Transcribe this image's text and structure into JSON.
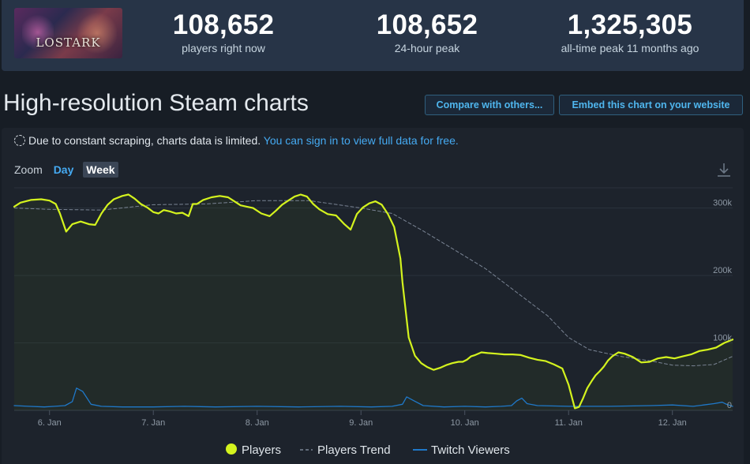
{
  "game": {
    "logo_text": "LOSTARK"
  },
  "stats": [
    {
      "value": "108,652",
      "label": "players right now"
    },
    {
      "value": "108,652",
      "label": "24-hour peak"
    },
    {
      "value": "1,325,305",
      "label": "all-time peak 11 months ago"
    }
  ],
  "header": {
    "title": "High-resolution Steam charts",
    "compare_label": "Compare with others...",
    "embed_label": "Embed this chart on your website"
  },
  "notice": {
    "text": "Due to constant scraping, charts data is limited.",
    "link_text": "You can sign in to view full data for free."
  },
  "zoom": {
    "label": "Zoom",
    "options": [
      "Day",
      "Week"
    ],
    "selected": "Week"
  },
  "icons": {
    "download": "download-icon",
    "loading": "loading-circle-icon"
  },
  "colors": {
    "players": "#d4f31e",
    "trend": "#7a8494",
    "twitch": "#1f78c8",
    "accent_link": "#45aaf2"
  },
  "chart_data": {
    "type": "line",
    "ylim": [
      0,
      330000
    ],
    "y_ticks": [
      {
        "value": 0,
        "label": "0"
      },
      {
        "value": 100000,
        "label": "100k"
      },
      {
        "value": 200000,
        "label": "200k"
      },
      {
        "value": 300000,
        "label": "300k"
      }
    ],
    "x_ticks": [
      {
        "x": 1,
        "label": "6. Jan"
      },
      {
        "x": 2,
        "label": "7. Jan"
      },
      {
        "x": 3,
        "label": "8. Jan"
      },
      {
        "x": 4,
        "label": "9. Jan"
      },
      {
        "x": 5,
        "label": "10. Jan"
      },
      {
        "x": 6,
        "label": "11. Jan"
      },
      {
        "x": 7,
        "label": "12. Jan"
      }
    ],
    "xlim": [
      0.66,
      7.58
    ],
    "legend": [
      "Players",
      "Players Trend",
      "Twitch Viewers"
    ],
    "series": [
      {
        "name": "Players",
        "style": "solid",
        "x": [
          0.66,
          0.72,
          0.82,
          0.92,
          1.0,
          1.06,
          1.1,
          1.16,
          1.22,
          1.3,
          1.38,
          1.44,
          1.5,
          1.56,
          1.62,
          1.7,
          1.76,
          1.82,
          1.88,
          1.94,
          2.0,
          2.05,
          2.1,
          2.16,
          2.22,
          2.28,
          2.34,
          2.38,
          2.42,
          2.48,
          2.56,
          2.64,
          2.72,
          2.78,
          2.84,
          2.9,
          2.96,
          3.04,
          3.12,
          3.18,
          3.24,
          3.3,
          3.36,
          3.42,
          3.48,
          3.54,
          3.6,
          3.68,
          3.76,
          3.84,
          3.9,
          3.96,
          4.02,
          4.08,
          4.14,
          4.2,
          4.26,
          4.32,
          4.38,
          4.4,
          4.46,
          4.52,
          4.58,
          4.64,
          4.7,
          4.76,
          4.82,
          4.88,
          4.94,
          4.98,
          5.02,
          5.06,
          5.1,
          5.16,
          5.22,
          5.3,
          5.38,
          5.46,
          5.54,
          5.62,
          5.7,
          5.78,
          5.86,
          5.94,
          6.0,
          6.06,
          6.1,
          6.14,
          6.18,
          6.22,
          6.26,
          6.3,
          6.34,
          6.38,
          6.42,
          6.48,
          6.54,
          6.62,
          6.7,
          6.78,
          6.86,
          6.94,
          7.02,
          7.1,
          7.18,
          7.26,
          7.34,
          7.42,
          7.5,
          7.58
        ],
        "y": [
          302000,
          308000,
          312000,
          313000,
          311000,
          306000,
          292000,
          265000,
          276000,
          280000,
          276000,
          275000,
          292000,
          305000,
          313000,
          318000,
          320000,
          314000,
          306000,
          301000,
          294000,
          292000,
          297000,
          295000,
          292000,
          293000,
          288000,
          306000,
          306000,
          312000,
          316000,
          318000,
          316000,
          310000,
          304000,
          302000,
          300000,
          292000,
          288000,
          296000,
          305000,
          311000,
          317000,
          320000,
          317000,
          306000,
          298000,
          291000,
          289000,
          276000,
          268000,
          291000,
          301000,
          307000,
          310000,
          305000,
          291000,
          272000,
          225000,
          190000,
          108000,
          81000,
          70000,
          64000,
          60000,
          63000,
          67000,
          70000,
          72000,
          72000,
          75000,
          80000,
          82000,
          86000,
          85000,
          84000,
          83000,
          83000,
          82000,
          78000,
          75000,
          73000,
          68000,
          62000,
          38000,
          3000,
          5000,
          18000,
          33000,
          43000,
          52000,
          58000,
          65000,
          74000,
          80000,
          86000,
          84000,
          79000,
          71000,
          72000,
          77000,
          79000,
          77000,
          80000,
          83000,
          88000,
          90000,
          93000,
          100000,
          105000
        ]
      },
      {
        "name": "Players Trend",
        "style": "dashed",
        "x": [
          0.66,
          1.0,
          1.5,
          2.0,
          2.5,
          3.0,
          3.5,
          4.0,
          4.3,
          4.6,
          4.9,
          5.2,
          5.5,
          5.8,
          6.0,
          6.2,
          6.5,
          6.8,
          7.0,
          7.2,
          7.4,
          7.58
        ],
        "y": [
          300000,
          298000,
          297000,
          305000,
          306000,
          311000,
          311000,
          300000,
          292000,
          266000,
          238000,
          210000,
          175000,
          140000,
          108000,
          90000,
          80000,
          73000,
          67000,
          66000,
          68000,
          80000
        ]
      },
      {
        "name": "Twitch Viewers",
        "style": "solid",
        "x": [
          0.66,
          0.8,
          0.95,
          1.05,
          1.15,
          1.22,
          1.26,
          1.32,
          1.4,
          1.5,
          1.7,
          2.0,
          2.3,
          2.6,
          3.0,
          3.4,
          3.8,
          4.1,
          4.3,
          4.4,
          4.44,
          4.5,
          4.6,
          4.8,
          5.0,
          5.2,
          5.35,
          5.45,
          5.5,
          5.55,
          5.6,
          5.7,
          6.0,
          6.4,
          6.8,
          7.0,
          7.2,
          7.3,
          7.4,
          7.48,
          7.52,
          7.58
        ],
        "y": [
          7000,
          6000,
          5000,
          6000,
          7000,
          13000,
          33000,
          28000,
          9000,
          6000,
          5000,
          5000,
          6000,
          5000,
          6000,
          5000,
          6000,
          5000,
          6000,
          9000,
          20000,
          15000,
          7000,
          5000,
          6000,
          5000,
          6000,
          7000,
          14000,
          18000,
          10000,
          7000,
          6000,
          6000,
          7000,
          8000,
          6000,
          8000,
          10000,
          12000,
          9000,
          6000
        ]
      }
    ]
  }
}
